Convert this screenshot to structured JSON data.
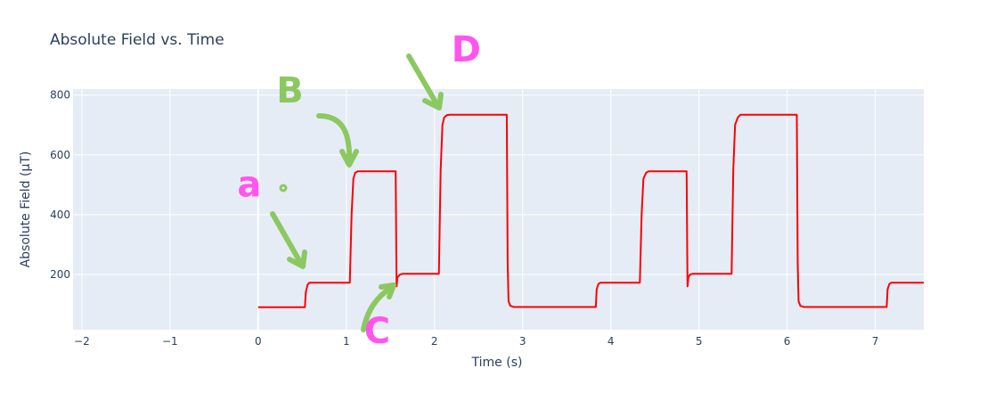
{
  "chart_data": {
    "type": "line",
    "title": "Absolute Field vs. Time",
    "xlabel": "Time (s)",
    "ylabel": "Absolute Field (µT)",
    "xlim": [
      -2.1,
      7.55
    ],
    "ylim": [
      15,
      820
    ],
    "xticks": [
      -2,
      -1,
      0,
      1,
      2,
      3,
      4,
      5,
      6,
      7
    ],
    "xtick_labels": [
      "−2",
      "−1",
      "0",
      "1",
      "2",
      "3",
      "4",
      "5",
      "6",
      "7"
    ],
    "yticks": [
      200,
      400,
      600,
      800
    ],
    "ytick_labels": [
      "200",
      "400",
      "600",
      "800"
    ],
    "grid": true,
    "legend": "none",
    "series": [
      {
        "color": "#ff0000",
        "x": [
          0,
          0.53,
          0.54,
          0.56,
          0.58,
          1.04,
          1.06,
          1.08,
          1.1,
          1.13,
          1.16,
          1.56,
          1.57,
          1.58,
          1.61,
          1.64,
          2.05,
          2.07,
          2.09,
          2.11,
          2.14,
          2.17,
          2.82,
          2.83,
          2.84,
          2.86,
          2.9,
          3.83,
          3.84,
          3.86,
          3.88,
          4.33,
          4.35,
          4.37,
          4.4,
          4.43,
          4.86,
          4.87,
          4.88,
          4.9,
          4.93,
          5.37,
          5.39,
          5.41,
          5.44,
          5.47,
          6.11,
          6.12,
          6.13,
          6.15,
          6.19,
          7.13,
          7.14,
          7.16,
          7.18,
          7.55
        ],
        "y": [
          90,
          90,
          140,
          165,
          172,
          172,
          400,
          520,
          540,
          545,
          545,
          545,
          160,
          190,
          200,
          202,
          202,
          550,
          700,
          725,
          733,
          734,
          734,
          240,
          110,
          95,
          91,
          91,
          150,
          168,
          172,
          172,
          400,
          520,
          540,
          545,
          545,
          160,
          190,
          200,
          202,
          202,
          550,
          700,
          725,
          734,
          734,
          240,
          110,
          95,
          91,
          91,
          150,
          168,
          172,
          172
        ]
      }
    ],
    "annotations": [
      {
        "text": "a",
        "color": "#ff55ee",
        "x": -0.1,
        "y": 460
      },
      {
        "text": "B",
        "color": "#8cc860",
        "x": 0.36,
        "y": 775
      },
      {
        "text": "C",
        "color": "#ff55ee",
        "x": 1.35,
        "y": -30
      },
      {
        "text": "D",
        "color": "#ff55ee",
        "x": 2.36,
        "y": 913
      }
    ]
  }
}
